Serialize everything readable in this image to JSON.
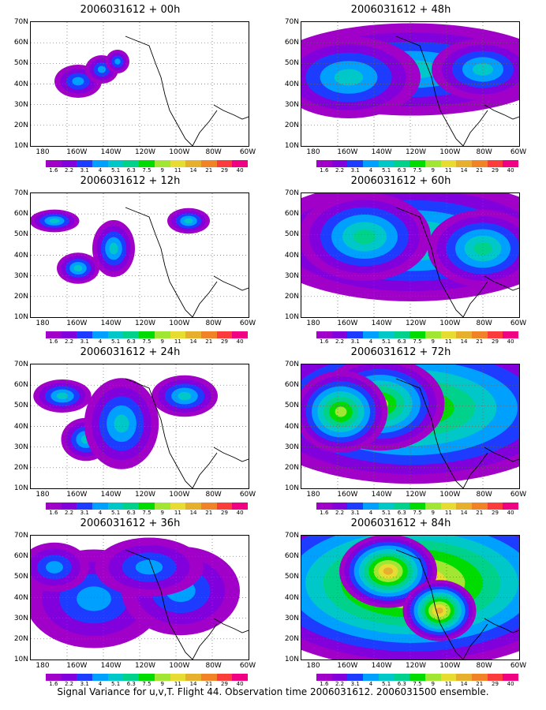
{
  "panels": [
    {
      "title": "2006031612 + 00h",
      "coverage": 0.15,
      "peak": 0.4
    },
    {
      "title": "2006031612 + 12h",
      "coverage": 0.3,
      "peak": 0.45
    },
    {
      "title": "2006031612 + 24h",
      "coverage": 0.45,
      "peak": 0.45
    },
    {
      "title": "2006031612 + 36h",
      "coverage": 0.65,
      "peak": 0.35
    },
    {
      "title": "2006031612 + 48h",
      "coverage": 0.7,
      "peak": 0.5
    },
    {
      "title": "2006031612 + 60h",
      "coverage": 0.8,
      "peak": 0.6
    },
    {
      "title": "2006031612 + 72h",
      "coverage": 0.88,
      "peak": 0.75
    },
    {
      "title": "2006031612 + 84h",
      "coverage": 0.95,
      "peak": 0.95
    }
  ],
  "lat_labels": [
    "70N",
    "60N",
    "50N",
    "40N",
    "30N",
    "20N",
    "10N"
  ],
  "lon_labels": [
    "180",
    "160W",
    "140W",
    "120W",
    "100W",
    "80W",
    "60W"
  ],
  "colorbar": {
    "levels": [
      "1.6",
      "2.2",
      "3.1",
      "4",
      "5.1",
      "6.3",
      "7.5",
      "9",
      "11",
      "14",
      "21",
      "29",
      "40"
    ],
    "colors": [
      "#a000c8",
      "#8200dc",
      "#1e3cff",
      "#00a0ff",
      "#00c8c8",
      "#00d28c",
      "#00dc00",
      "#a0e632",
      "#e6dc32",
      "#e6af2d",
      "#f08228",
      "#fa3c3c",
      "#f00082"
    ]
  },
  "caption": "Signal Variance for u,v,T. Flight 44. Observation time 2006031612. 2006031500 ensemble."
}
